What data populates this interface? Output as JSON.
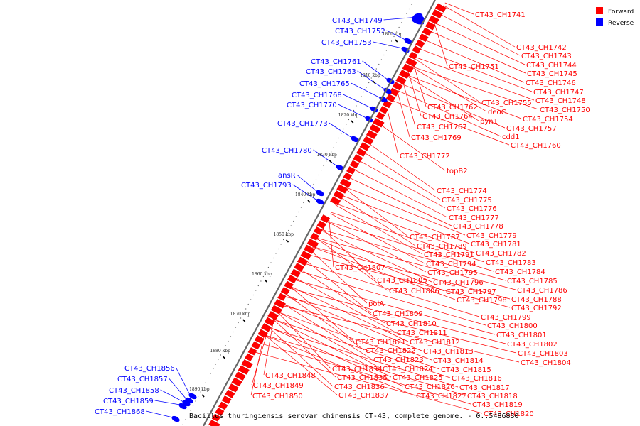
{
  "title": "Bacillus thuringiensis serovar chinensis CT-43, complete genome. - 0..5486830",
  "legend": [
    {
      "label": "Forward",
      "color": "#ff0000"
    },
    {
      "label": "Reverse",
      "color": "#0000ff"
    }
  ],
  "colors": {
    "forward": "#ff0000",
    "reverse": "#0000ff",
    "backbone": "#666666"
  },
  "ticks": [
    "1800 kbp",
    "1810 kbp",
    "1820 kbp",
    "1830 kbp",
    "1840 kbp",
    "1850 kbp",
    "1860 kbp",
    "1870 kbp",
    "1880 kbp",
    "1890 kbp"
  ],
  "reverse_genes": [
    "CT43_CH1749",
    "CT43_CH1752",
    "CT43_CH1753",
    "CT43_CH1761",
    "CT43_CH1763",
    "CT43_CH1765",
    "CT43_CH1768",
    "CT43_CH1770",
    "CT43_CH1773",
    "CT43_CH1780",
    "ansR",
    "CT43_CH1793",
    "CT43_CH1856",
    "CT43_CH1857",
    "CT43_CH1858",
    "CT43_CH1859",
    "CT43_CH1868"
  ],
  "forward_genes": [
    "CT43_CH1741",
    "CT43_CH1742",
    "CT43_CH1743",
    "CT43_CH1744",
    "CT43_CH1745",
    "CT43_CH1746",
    "CT43_CH1747",
    "CT43_CH1748",
    "CT43_CH1750",
    "CT43_CH1751",
    "CT43_CH1755",
    "CT43_CH1754",
    "CT43_CH1757",
    "CT43_CH1760",
    "CT43_CH1762",
    "CT43_CH1764",
    "deoC",
    "pyn1",
    "CT43_CH1767",
    "cdd1",
    "CT43_CH1769",
    "CT43_CH1772",
    "topB2",
    "CT43_CH1774",
    "CT43_CH1775",
    "CT43_CH1776",
    "CT43_CH1777",
    "CT43_CH1778",
    "CT43_CH1779",
    "CT43_CH1787",
    "CT43_CH1781",
    "CT43_CH1789",
    "CT43_CH1782",
    "CT43_CH1791",
    "CT43_CH1783",
    "CT43_CH1794",
    "CT43_CH1784",
    "CT43_CH1807",
    "CT43_CH1795",
    "CT43_CH1785",
    "CT43_CH1805",
    "CT43_CH1796",
    "CT43_CH1786",
    "CT43_CH1806",
    "CT43_CH1797",
    "CT43_CH1788",
    "CT43_CH1798",
    "CT43_CH1792",
    "polA",
    "CT43_CH1809",
    "CT43_CH1799",
    "CT43_CH1810",
    "CT43_CH1800",
    "CT43_CH1811",
    "CT43_CH1801",
    "CT43_CH1821",
    "CT43_CH1812",
    "CT43_CH1802",
    "CT43_CH1822",
    "CT43_CH1813",
    "CT43_CH1803",
    "CT43_CH1823",
    "CT43_CH1814",
    "CT43_CH1804",
    "CT43_CH1834",
    "CT43_CH1824",
    "CT43_CH1815",
    "CT43_CH1848",
    "CT43_CH1835",
    "CT43_CH1825",
    "CT43_CH1816",
    "CT43_CH1849",
    "CT43_CH1836",
    "CT43_CH1826",
    "CT43_CH1817",
    "CT43_CH1850",
    "CT43_CH1837",
    "CT43_CH1827",
    "CT43_CH1818",
    "CT43_CH1819",
    "CT43_CH1820"
  ]
}
